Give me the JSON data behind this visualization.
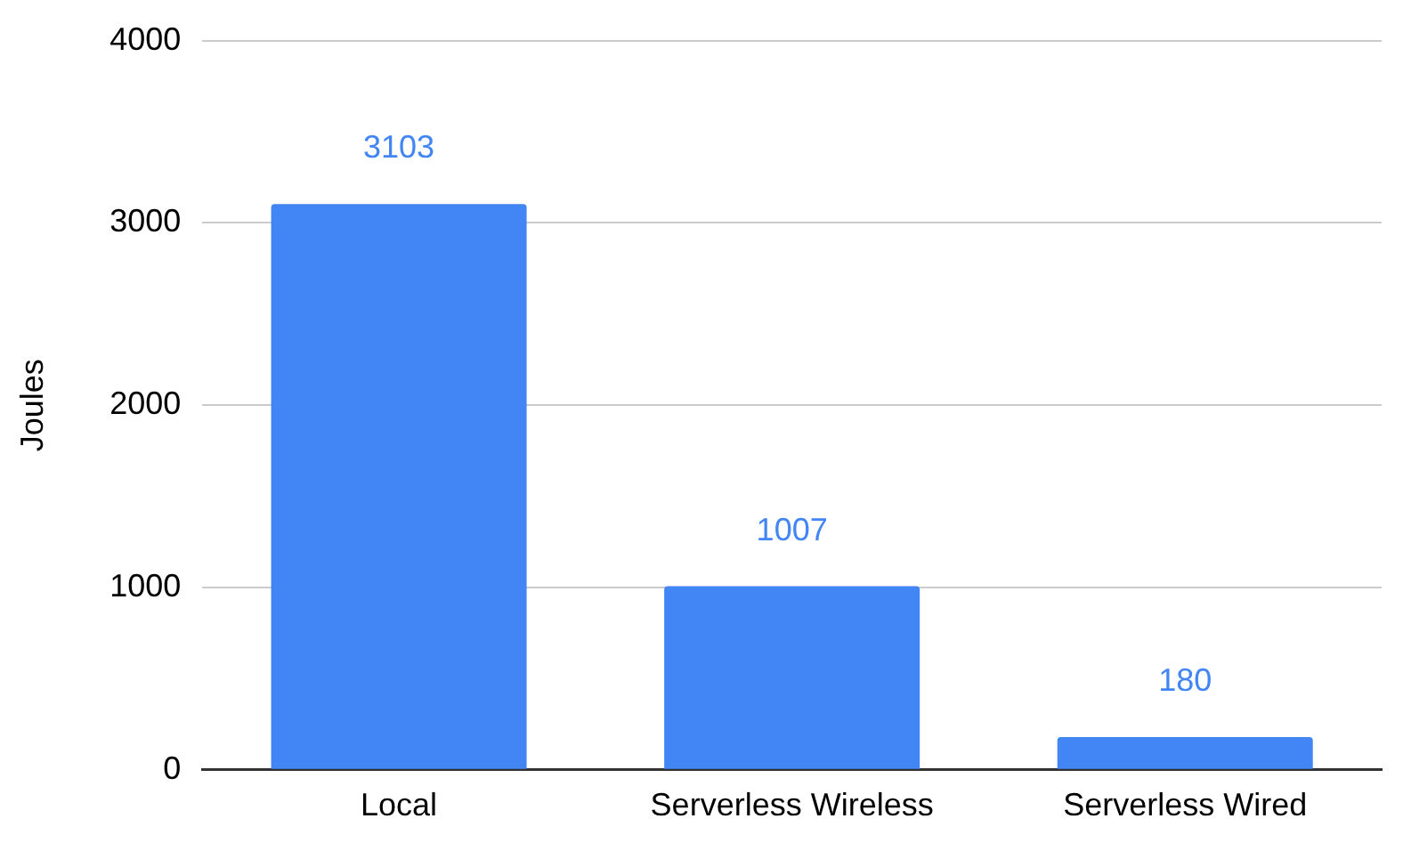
{
  "chart_data": {
    "type": "bar",
    "ylabel": "Joules",
    "categories": [
      "Local",
      "Serverless Wireless",
      "Serverless Wired"
    ],
    "values": [
      3103,
      1007,
      180
    ],
    "color": "#4285f4",
    "ylim": [
      0,
      4000
    ],
    "yticks": [
      0,
      1000,
      2000,
      3000,
      4000
    ],
    "grid": "y",
    "data_labels": true,
    "legend": false
  }
}
